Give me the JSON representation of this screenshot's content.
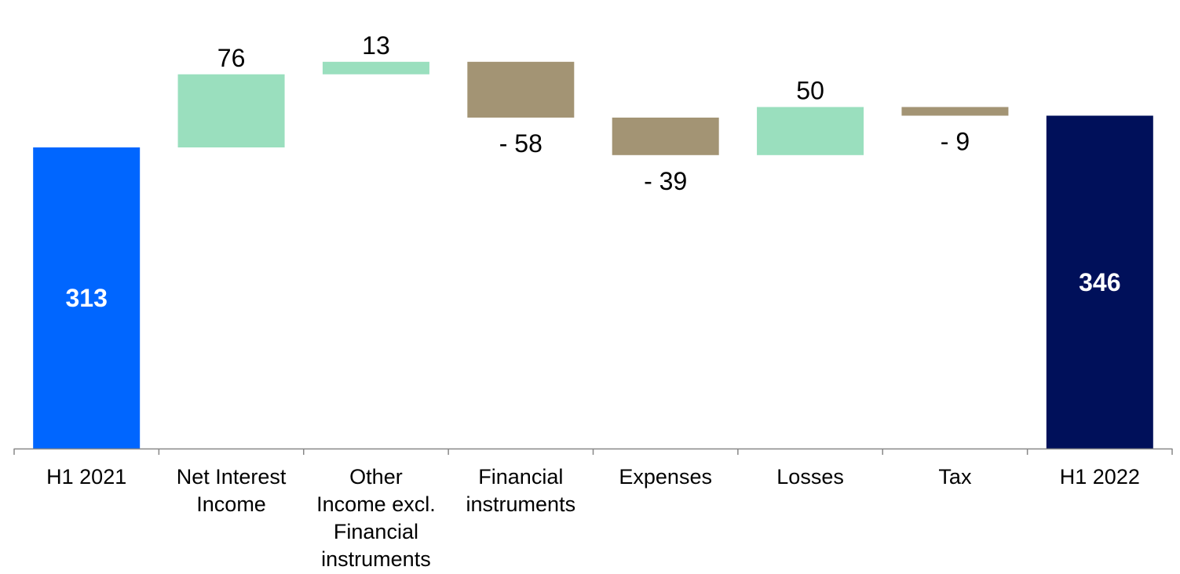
{
  "chart_data": {
    "type": "bar",
    "subtype": "waterfall",
    "title": "",
    "xlabel": "",
    "ylabel": "",
    "ylim": [
      0,
      400
    ],
    "grid": false,
    "legend": "none",
    "categories": [
      [
        "H1 2021"
      ],
      [
        "Net Interest",
        "Income"
      ],
      [
        "Other",
        "Income excl.",
        "Financial",
        "instruments"
      ],
      [
        "Financial",
        "instruments"
      ],
      [
        "Expenses"
      ],
      [
        "Losses"
      ],
      [
        "Tax"
      ],
      [
        "H1 2022"
      ]
    ],
    "values": [
      313,
      76,
      13,
      -58,
      -39,
      50,
      -9,
      346
    ],
    "kinds": [
      "total",
      "delta",
      "delta",
      "delta",
      "delta",
      "delta",
      "delta",
      "total"
    ],
    "data_labels": [
      "313",
      "76",
      "13",
      "- 58",
      "- 39",
      "50",
      "- 9",
      "346"
    ],
    "colors": {
      "start_total": "#0066FF",
      "end_total": "#00105A",
      "increase": "#9ADFBE",
      "decrease": "#A39474",
      "axis": "#888888"
    }
  }
}
